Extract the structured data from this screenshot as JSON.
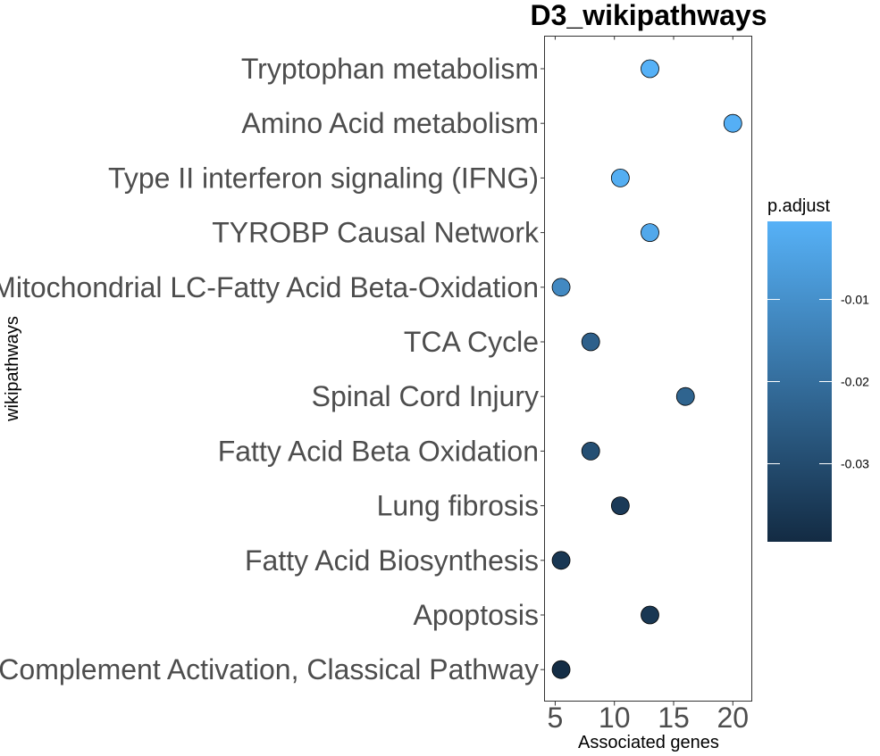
{
  "chart_data": {
    "type": "scatter",
    "title": "D3_wikipathways",
    "xlabel": "Associated genes",
    "ylabel": "wikipathways",
    "xlim": [
      4.1,
      21.6
    ],
    "xticks": [
      "5",
      "10",
      "15",
      "20"
    ],
    "grid": false,
    "legend": {
      "title": "p.adjust",
      "placement": "right",
      "ticks": [
        "-0.01",
        "-0.02",
        "-0.03"
      ],
      "range": [
        -0.0395,
        -0.0005
      ],
      "color_low": "#132B43",
      "color_high": "#56B1F7"
    },
    "points": [
      {
        "category": "Tryptophan metabolism",
        "x": 13,
        "p_adjust": -0.0005
      },
      {
        "category": "Amino Acid metabolism",
        "x": 20,
        "p_adjust": -0.001
      },
      {
        "category": "Type II interferon signaling (IFNG)",
        "x": 10.5,
        "p_adjust": -0.0015
      },
      {
        "category": "TYROBP Causal Network",
        "x": 13,
        "p_adjust": -0.003
      },
      {
        "category": "Mitochondrial LC-Fatty Acid Beta-Oxidation",
        "x": 5.5,
        "p_adjust": -0.012
      },
      {
        "category": "TCA Cycle",
        "x": 8,
        "p_adjust": -0.024
      },
      {
        "category": "Spinal Cord Injury",
        "x": 16,
        "p_adjust": -0.023
      },
      {
        "category": "Fatty Acid Beta Oxidation",
        "x": 8,
        "p_adjust": -0.029
      },
      {
        "category": "Lung fibrosis",
        "x": 10.5,
        "p_adjust": -0.035
      },
      {
        "category": "Fatty Acid Biosynthesis",
        "x": 5.5,
        "p_adjust": -0.036
      },
      {
        "category": "Apoptosis",
        "x": 13,
        "p_adjust": -0.036
      },
      {
        "category": "Complement Activation, Classical Pathway",
        "x": 5.5,
        "p_adjust": -0.039
      }
    ]
  }
}
